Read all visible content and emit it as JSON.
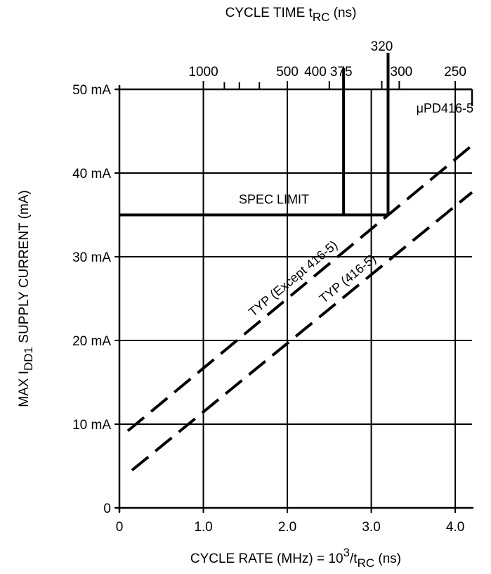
{
  "chart_data": {
    "type": "line",
    "xlabel": "CYCLE RATE (MHz) = 10³/tRC (ns)",
    "xlabel_parts": {
      "prefix": "CYCLE RATE (MHz) = 10",
      "sup": "3",
      "mid": "/t",
      "sub": "RC",
      "suffix": " (ns)"
    },
    "ylabel": "MAX IDD1 SUPPLY CURRENT (mA)",
    "ylabel_parts": {
      "prefix": "MAX I",
      "sub": "DD1",
      "suffix": " SUPPLY CURRENT (mA)"
    },
    "top_axis_title": "CYCLE TIME tRC (ns)",
    "top_axis_title_parts": {
      "prefix": "CYCLE TIME t",
      "sub": "RC",
      "suffix": " (ns)"
    },
    "xlim": [
      0,
      4.2
    ],
    "ylim": [
      0,
      50
    ],
    "x_ticks": [
      {
        "value": 0,
        "label": "0"
      },
      {
        "value": 1.0,
        "label": "1.0"
      },
      {
        "value": 2.0,
        "label": "2.0"
      },
      {
        "value": 3.0,
        "label": "3.0"
      },
      {
        "value": 4.0,
        "label": "4.0"
      }
    ],
    "y_ticks": [
      {
        "value": 0,
        "label": "0"
      },
      {
        "value": 10,
        "label": "10 mA"
      },
      {
        "value": 20,
        "label": "20 mA"
      },
      {
        "value": 30,
        "label": "30 mA"
      },
      {
        "value": 40,
        "label": "40 mA"
      },
      {
        "value": 50,
        "label": "50 mA"
      }
    ],
    "top_ticks": [
      {
        "ns": 1000,
        "label": "1000"
      },
      {
        "ns": 800,
        "label": ""
      },
      {
        "ns": 700,
        "label": ""
      },
      {
        "ns": 600,
        "label": ""
      },
      {
        "ns": 500,
        "label": "500"
      },
      {
        "ns": 400,
        "label": "400"
      },
      {
        "ns": 375,
        "label": "375"
      },
      {
        "ns": 320,
        "label": "320"
      },
      {
        "ns": 300,
        "label": "300"
      },
      {
        "ns": 250,
        "label": "250"
      }
    ],
    "grid": true,
    "series": [
      {
        "name": "TYP (Except 416-5)",
        "style": "dashed",
        "x": [
          0.1,
          4.2
        ],
        "y": [
          9.2,
          43.3
        ]
      },
      {
        "name": "TYP (416-5)",
        "style": "dashed",
        "x": [
          0.15,
          4.2
        ],
        "y": [
          4.5,
          37.7
        ]
      }
    ],
    "spec_limit": {
      "label": "SPEC LIMIT",
      "value": 35,
      "x_start": 0,
      "x_end_short": 2.67,
      "x_end_long": 3.2,
      "vertical_at_x": [
        2.67,
        3.2
      ]
    },
    "part_label": "μPD416-5",
    "part_limit_x_range": [
      4.0,
      4.2
    ]
  }
}
